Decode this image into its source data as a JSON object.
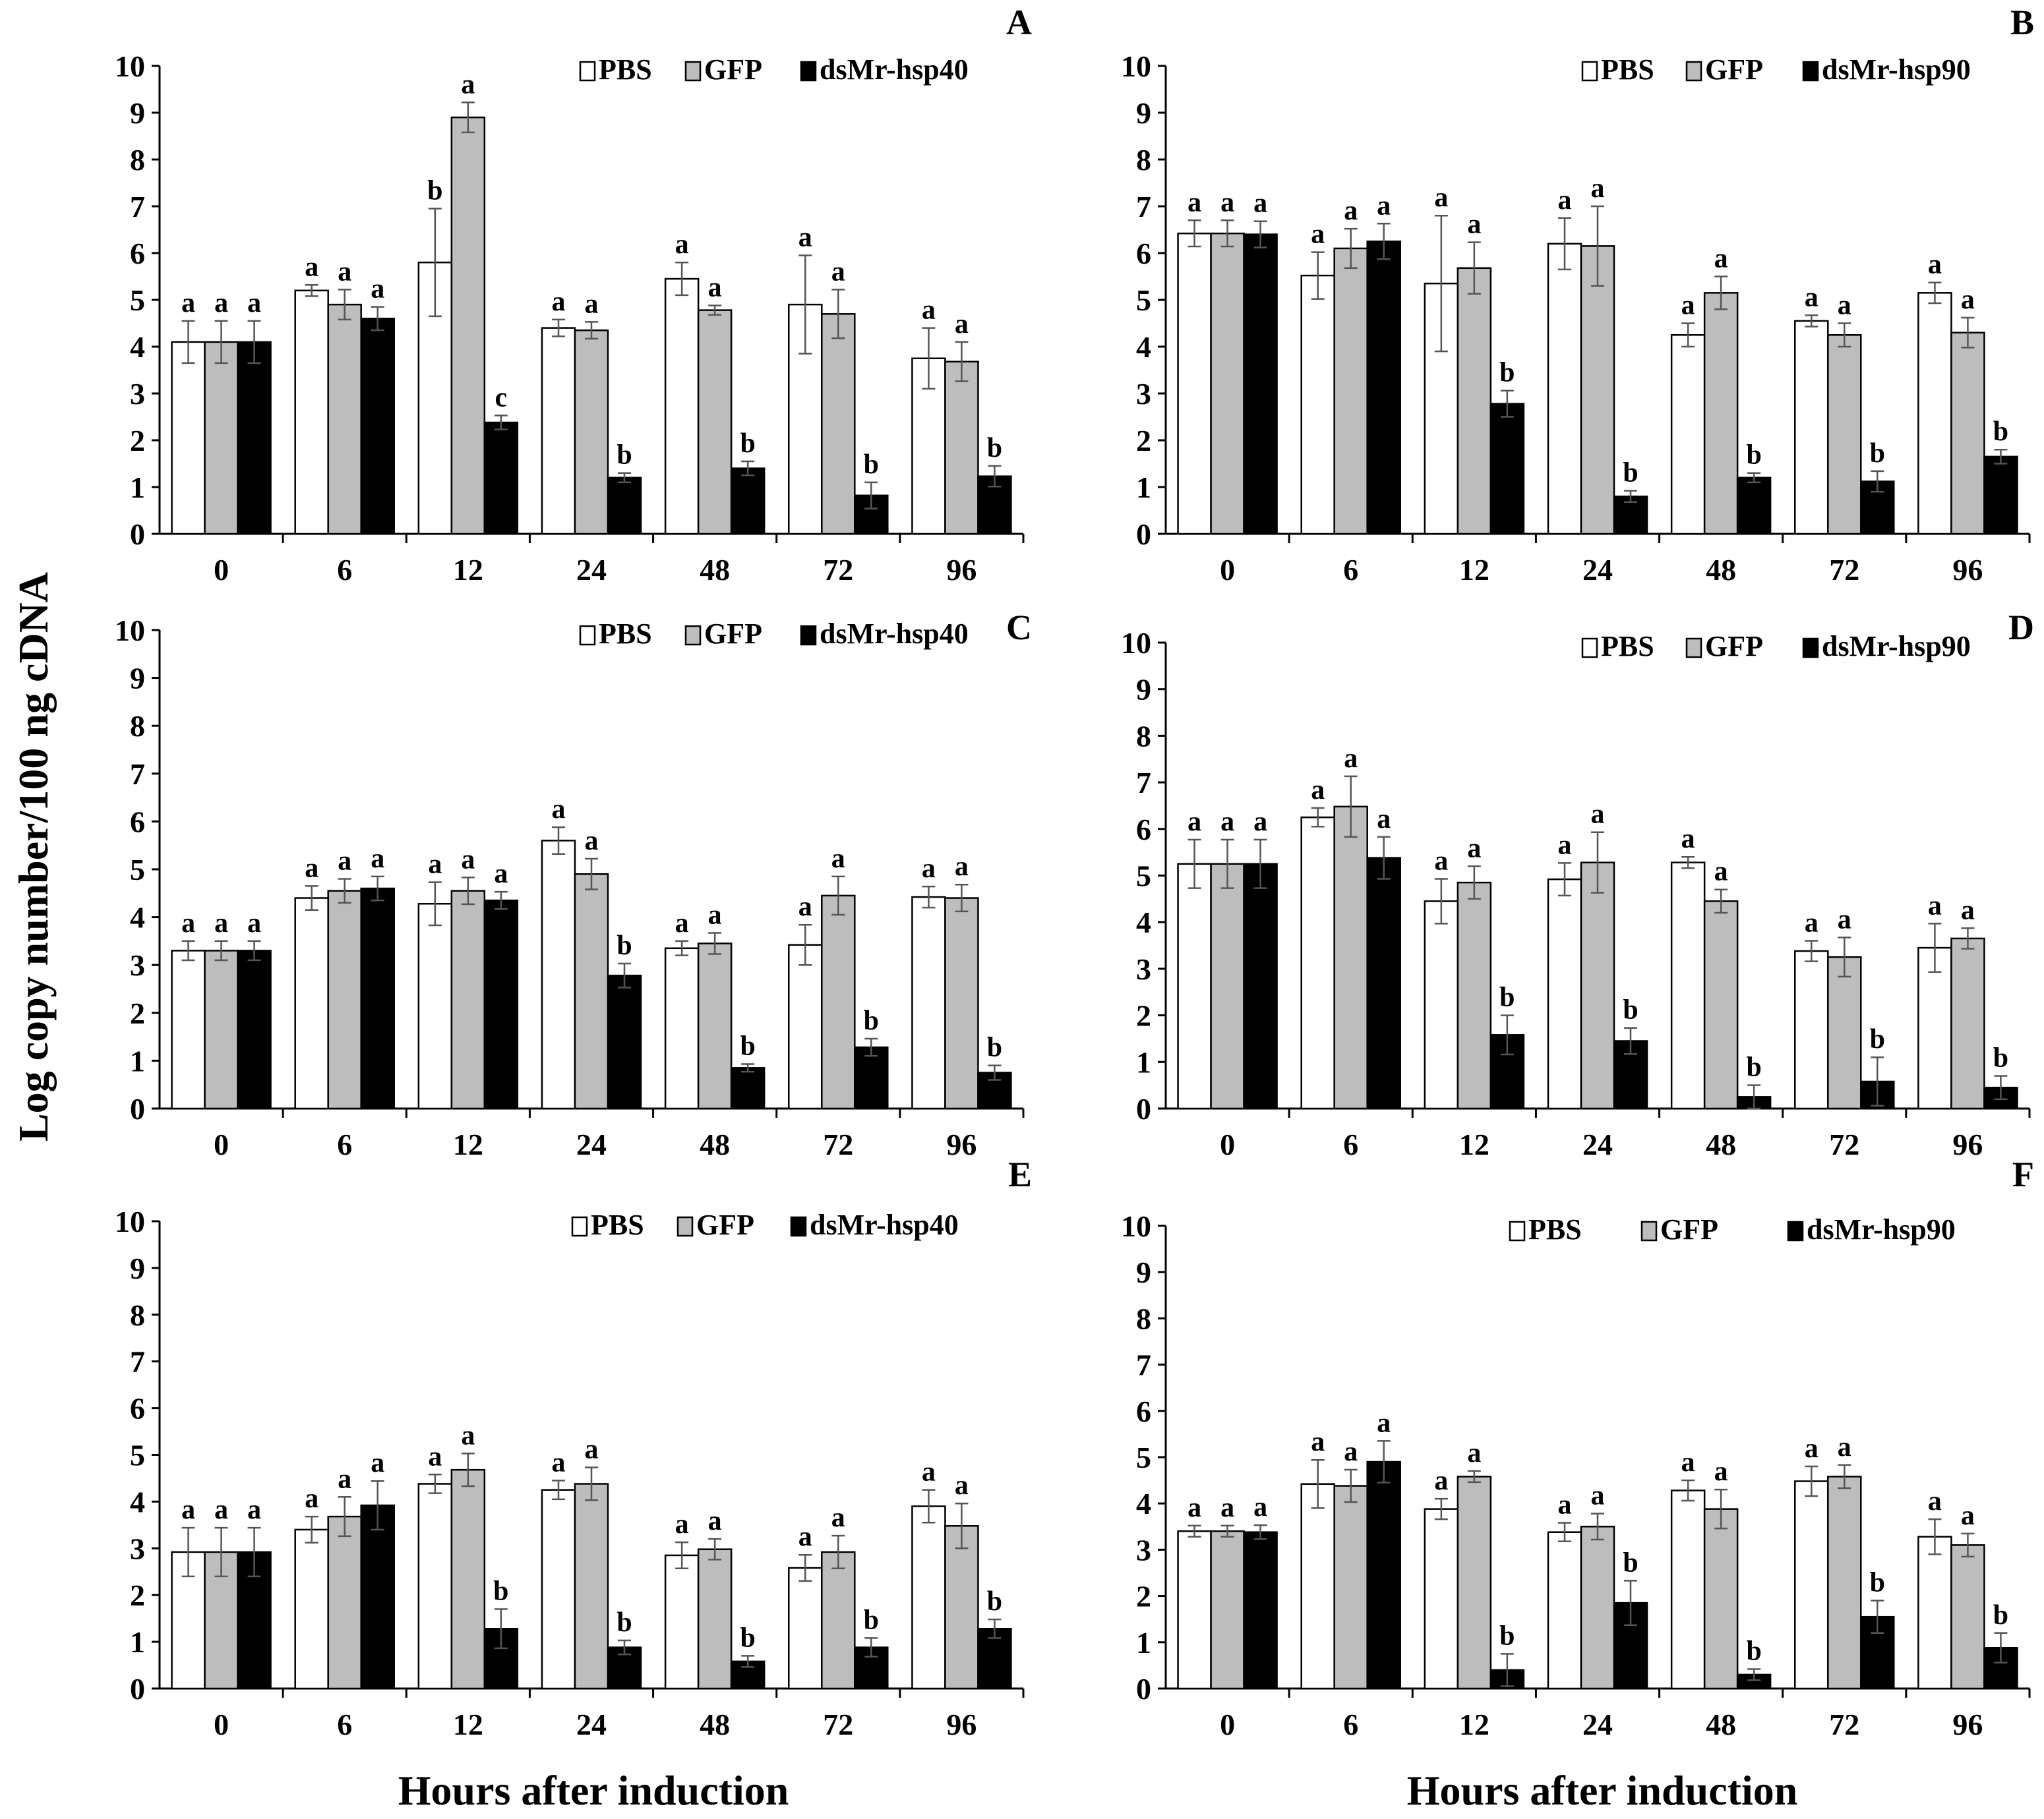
{
  "figure": {
    "ylabel": "Log copy number/100 ng cDNA",
    "xlabel": "Hours after induction"
  },
  "colors": {
    "PBS": "#ffffff",
    "GFP": "#bdbdbd",
    "ds": "#000000",
    "outline": "#000000"
  },
  "chart_data": [
    {
      "type": "bar",
      "panel": "A",
      "categories": [
        "0",
        "6",
        "12",
        "24",
        "48",
        "72",
        "96"
      ],
      "ylim": [
        0,
        10
      ],
      "yticks": [
        "0",
        "1",
        "2",
        "3",
        "4",
        "5",
        "6",
        "7",
        "8",
        "9",
        "10"
      ],
      "legend": [
        "PBS",
        "GFP",
        "dsMr-hsp40"
      ],
      "series": [
        {
          "name": "PBS",
          "values": [
            4.1,
            5.2,
            5.8,
            4.4,
            5.45,
            4.9,
            3.75
          ],
          "errors": [
            0.45,
            0.12,
            1.15,
            0.18,
            0.35,
            1.05,
            0.65
          ],
          "labels": [
            "a",
            "a",
            "b",
            "a",
            "a",
            "a",
            "a"
          ]
        },
        {
          "name": "GFP",
          "values": [
            4.1,
            4.9,
            8.9,
            4.35,
            4.78,
            4.7,
            3.68
          ],
          "errors": [
            0.45,
            0.32,
            0.32,
            0.18,
            0.1,
            0.52,
            0.42
          ],
          "labels": [
            "a",
            "a",
            "a",
            "a",
            "a",
            "a",
            "a"
          ]
        },
        {
          "name": "dsMr-hsp40",
          "values": [
            4.1,
            4.6,
            2.38,
            1.2,
            1.4,
            0.82,
            1.23
          ],
          "errors": [
            0.45,
            0.25,
            0.15,
            0.1,
            0.15,
            0.28,
            0.22
          ],
          "labels": [
            "a",
            "a",
            "c",
            "b",
            "b",
            "b",
            "b"
          ]
        }
      ]
    },
    {
      "type": "bar",
      "panel": "B",
      "categories": [
        "0",
        "6",
        "12",
        "24",
        "48",
        "72",
        "96"
      ],
      "ylim": [
        0,
        10
      ],
      "yticks": [
        "0",
        "1",
        "2",
        "3",
        "4",
        "5",
        "6",
        "7",
        "8",
        "9",
        "10"
      ],
      "legend": [
        "PBS",
        "GFP",
        "dsMr-hsp90"
      ],
      "series": [
        {
          "name": "PBS",
          "values": [
            6.42,
            5.52,
            5.35,
            6.2,
            4.25,
            4.55,
            5.15
          ],
          "errors": [
            0.28,
            0.5,
            1.45,
            0.55,
            0.25,
            0.12,
            0.22
          ],
          "labels": [
            "a",
            "a",
            "a",
            "a",
            "a",
            "a",
            "a"
          ]
        },
        {
          "name": "GFP",
          "values": [
            6.42,
            6.1,
            5.68,
            6.15,
            5.15,
            4.25,
            4.3
          ],
          "errors": [
            0.28,
            0.42,
            0.55,
            0.85,
            0.35,
            0.25,
            0.32
          ],
          "labels": [
            "a",
            "a",
            "a",
            "a",
            "a",
            "a",
            "a"
          ]
        },
        {
          "name": "dsMr-hsp90",
          "values": [
            6.4,
            6.25,
            2.78,
            0.8,
            1.2,
            1.12,
            1.65
          ],
          "errors": [
            0.28,
            0.38,
            0.28,
            0.12,
            0.1,
            0.22,
            0.15
          ],
          "labels": [
            "a",
            "a",
            "b",
            "b",
            "b",
            "b",
            "b"
          ]
        }
      ]
    },
    {
      "type": "bar",
      "panel": "C",
      "categories": [
        "0",
        "6",
        "12",
        "24",
        "48",
        "72",
        "96"
      ],
      "ylim": [
        0,
        10
      ],
      "yticks": [
        "0",
        "1",
        "2",
        "3",
        "4",
        "5",
        "6",
        "7",
        "8",
        "9",
        "10"
      ],
      "legend": [
        "PBS",
        "GFP",
        "dsMr-hsp40"
      ],
      "series": [
        {
          "name": "PBS",
          "values": [
            3.3,
            4.4,
            4.28,
            5.6,
            3.35,
            3.42,
            4.42
          ],
          "errors": [
            0.2,
            0.25,
            0.45,
            0.28,
            0.15,
            0.42,
            0.22
          ],
          "labels": [
            "a",
            "a",
            "a",
            "a",
            "a",
            "a",
            "a"
          ]
        },
        {
          "name": "GFP",
          "values": [
            3.3,
            4.55,
            4.55,
            4.9,
            3.45,
            4.45,
            4.4
          ],
          "errors": [
            0.2,
            0.25,
            0.28,
            0.32,
            0.22,
            0.4,
            0.28
          ],
          "labels": [
            "a",
            "a",
            "a",
            "a",
            "a",
            "a",
            "a"
          ]
        },
        {
          "name": "dsMr-hsp40",
          "values": [
            3.3,
            4.6,
            4.35,
            2.78,
            0.85,
            1.28,
            0.75
          ],
          "errors": [
            0.2,
            0.25,
            0.18,
            0.25,
            0.08,
            0.18,
            0.15
          ],
          "labels": [
            "a",
            "a",
            "a",
            "b",
            "b",
            "b",
            "b"
          ]
        }
      ]
    },
    {
      "type": "bar",
      "panel": "D",
      "categories": [
        "0",
        "6",
        "12",
        "24",
        "48",
        "72",
        "96"
      ],
      "ylim": [
        0,
        10
      ],
      "yticks": [
        "0",
        "1",
        "2",
        "3",
        "4",
        "5",
        "6",
        "7",
        "8",
        "9",
        "10"
      ],
      "legend": [
        "PBS",
        "GFP",
        "dsMr-hsp90"
      ],
      "series": [
        {
          "name": "PBS",
          "values": [
            5.25,
            6.25,
            4.45,
            4.92,
            5.28,
            3.38,
            3.45
          ],
          "errors": [
            0.52,
            0.2,
            0.48,
            0.35,
            0.12,
            0.22,
            0.52
          ],
          "labels": [
            "a",
            "a",
            "a",
            "a",
            "a",
            "a",
            "a"
          ]
        },
        {
          "name": "GFP",
          "values": [
            5.25,
            6.48,
            4.85,
            5.28,
            4.45,
            3.25,
            3.65
          ],
          "errors": [
            0.52,
            0.65,
            0.35,
            0.65,
            0.25,
            0.42,
            0.22
          ],
          "labels": [
            "a",
            "a",
            "a",
            "a",
            "a",
            "a",
            "a"
          ]
        },
        {
          "name": "dsMr-hsp90",
          "values": [
            5.25,
            5.38,
            1.58,
            1.45,
            0.25,
            0.58,
            0.45
          ],
          "errors": [
            0.52,
            0.45,
            0.42,
            0.28,
            0.25,
            0.52,
            0.25
          ],
          "labels": [
            "a",
            "a",
            "b",
            "b",
            "b",
            "b",
            "b"
          ]
        }
      ]
    },
    {
      "type": "bar",
      "panel": "E",
      "categories": [
        "0",
        "6",
        "12",
        "24",
        "48",
        "72",
        "96"
      ],
      "ylim": [
        0,
        10
      ],
      "yticks": [
        "0",
        "1",
        "2",
        "3",
        "4",
        "5",
        "6",
        "7",
        "8",
        "9",
        "10"
      ],
      "legend": [
        "PBS",
        "GFP",
        "dsMr-hsp40"
      ],
      "series": [
        {
          "name": "PBS",
          "values": [
            2.92,
            3.4,
            4.38,
            4.25,
            2.85,
            2.58,
            3.9
          ],
          "errors": [
            0.52,
            0.28,
            0.2,
            0.2,
            0.28,
            0.28,
            0.35
          ],
          "labels": [
            "a",
            "a",
            "a",
            "a",
            "a",
            "a",
            "a"
          ]
        },
        {
          "name": "GFP",
          "values": [
            2.92,
            3.68,
            4.68,
            4.38,
            2.98,
            2.92,
            3.48
          ],
          "errors": [
            0.52,
            0.42,
            0.35,
            0.35,
            0.22,
            0.35,
            0.48
          ],
          "labels": [
            "a",
            "a",
            "a",
            "a",
            "a",
            "a",
            "a"
          ]
        },
        {
          "name": "dsMr-hsp40",
          "values": [
            2.92,
            3.92,
            1.28,
            0.88,
            0.58,
            0.88,
            1.28
          ],
          "errors": [
            0.52,
            0.52,
            0.42,
            0.15,
            0.12,
            0.2,
            0.2
          ],
          "labels": [
            "a",
            "a",
            "b",
            "b",
            "b",
            "b",
            "b"
          ]
        }
      ]
    },
    {
      "type": "bar",
      "panel": "F",
      "categories": [
        "0",
        "6",
        "12",
        "24",
        "48",
        "72",
        "96"
      ],
      "ylim": [
        0,
        10
      ],
      "yticks": [
        "0",
        "1",
        "2",
        "3",
        "4",
        "5",
        "6",
        "7",
        "8",
        "9",
        "10"
      ],
      "legend": [
        "PBS",
        "GFP",
        "dsMr-hsp90"
      ],
      "series": [
        {
          "name": "PBS",
          "values": [
            3.4,
            4.42,
            3.88,
            3.38,
            4.28,
            4.48,
            3.28
          ],
          "errors": [
            0.12,
            0.52,
            0.22,
            0.2,
            0.22,
            0.32,
            0.38
          ],
          "labels": [
            "a",
            "a",
            "a",
            "a",
            "a",
            "a",
            "a"
          ]
        },
        {
          "name": "GFP",
          "values": [
            3.4,
            4.38,
            4.58,
            3.5,
            3.88,
            4.58,
            3.1
          ],
          "errors": [
            0.12,
            0.35,
            0.12,
            0.28,
            0.42,
            0.25,
            0.25
          ],
          "labels": [
            "a",
            "a",
            "a",
            "a",
            "a",
            "a",
            "a"
          ]
        },
        {
          "name": "dsMr-hsp90",
          "values": [
            3.38,
            4.9,
            0.4,
            1.85,
            0.3,
            1.55,
            0.88
          ],
          "errors": [
            0.15,
            0.45,
            0.35,
            0.48,
            0.12,
            0.35,
            0.32
          ],
          "labels": [
            "a",
            "a",
            "b",
            "b",
            "b",
            "b",
            "b"
          ]
        }
      ]
    }
  ]
}
